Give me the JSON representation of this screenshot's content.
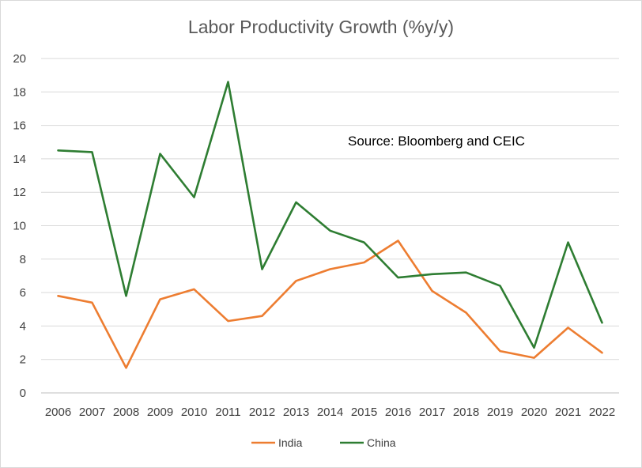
{
  "chart_data": {
    "type": "line",
    "title": "Labor Productivity Growth (%y/y)",
    "annotation": "Source: Bloomberg and CEIC",
    "xlabel": "",
    "ylabel": "",
    "ylim": [
      0,
      20
    ],
    "yticks": [
      "0",
      "2",
      "4",
      "6",
      "8",
      "10",
      "12",
      "14",
      "16",
      "18",
      "20"
    ],
    "grid": true,
    "legend_position": "bottom",
    "categories": [
      "2006",
      "2007",
      "2008",
      "2009",
      "2010",
      "2011",
      "2012",
      "2013",
      "2014",
      "2015",
      "2016",
      "2017",
      "2018",
      "2019",
      "2020",
      "2021",
      "2022"
    ],
    "series": [
      {
        "name": "India",
        "color": "#ED7D31",
        "values": [
          5.8,
          5.4,
          1.5,
          5.6,
          6.2,
          4.3,
          4.6,
          6.7,
          7.4,
          7.8,
          9.1,
          6.1,
          4.8,
          2.5,
          2.1,
          3.9,
          2.4
        ]
      },
      {
        "name": "China",
        "color": "#2E7D32",
        "values": [
          14.5,
          14.4,
          5.8,
          14.3,
          11.7,
          18.6,
          7.4,
          11.4,
          9.7,
          9.0,
          6.9,
          7.1,
          7.2,
          6.4,
          2.7,
          9.0,
          4.2
        ]
      }
    ]
  }
}
